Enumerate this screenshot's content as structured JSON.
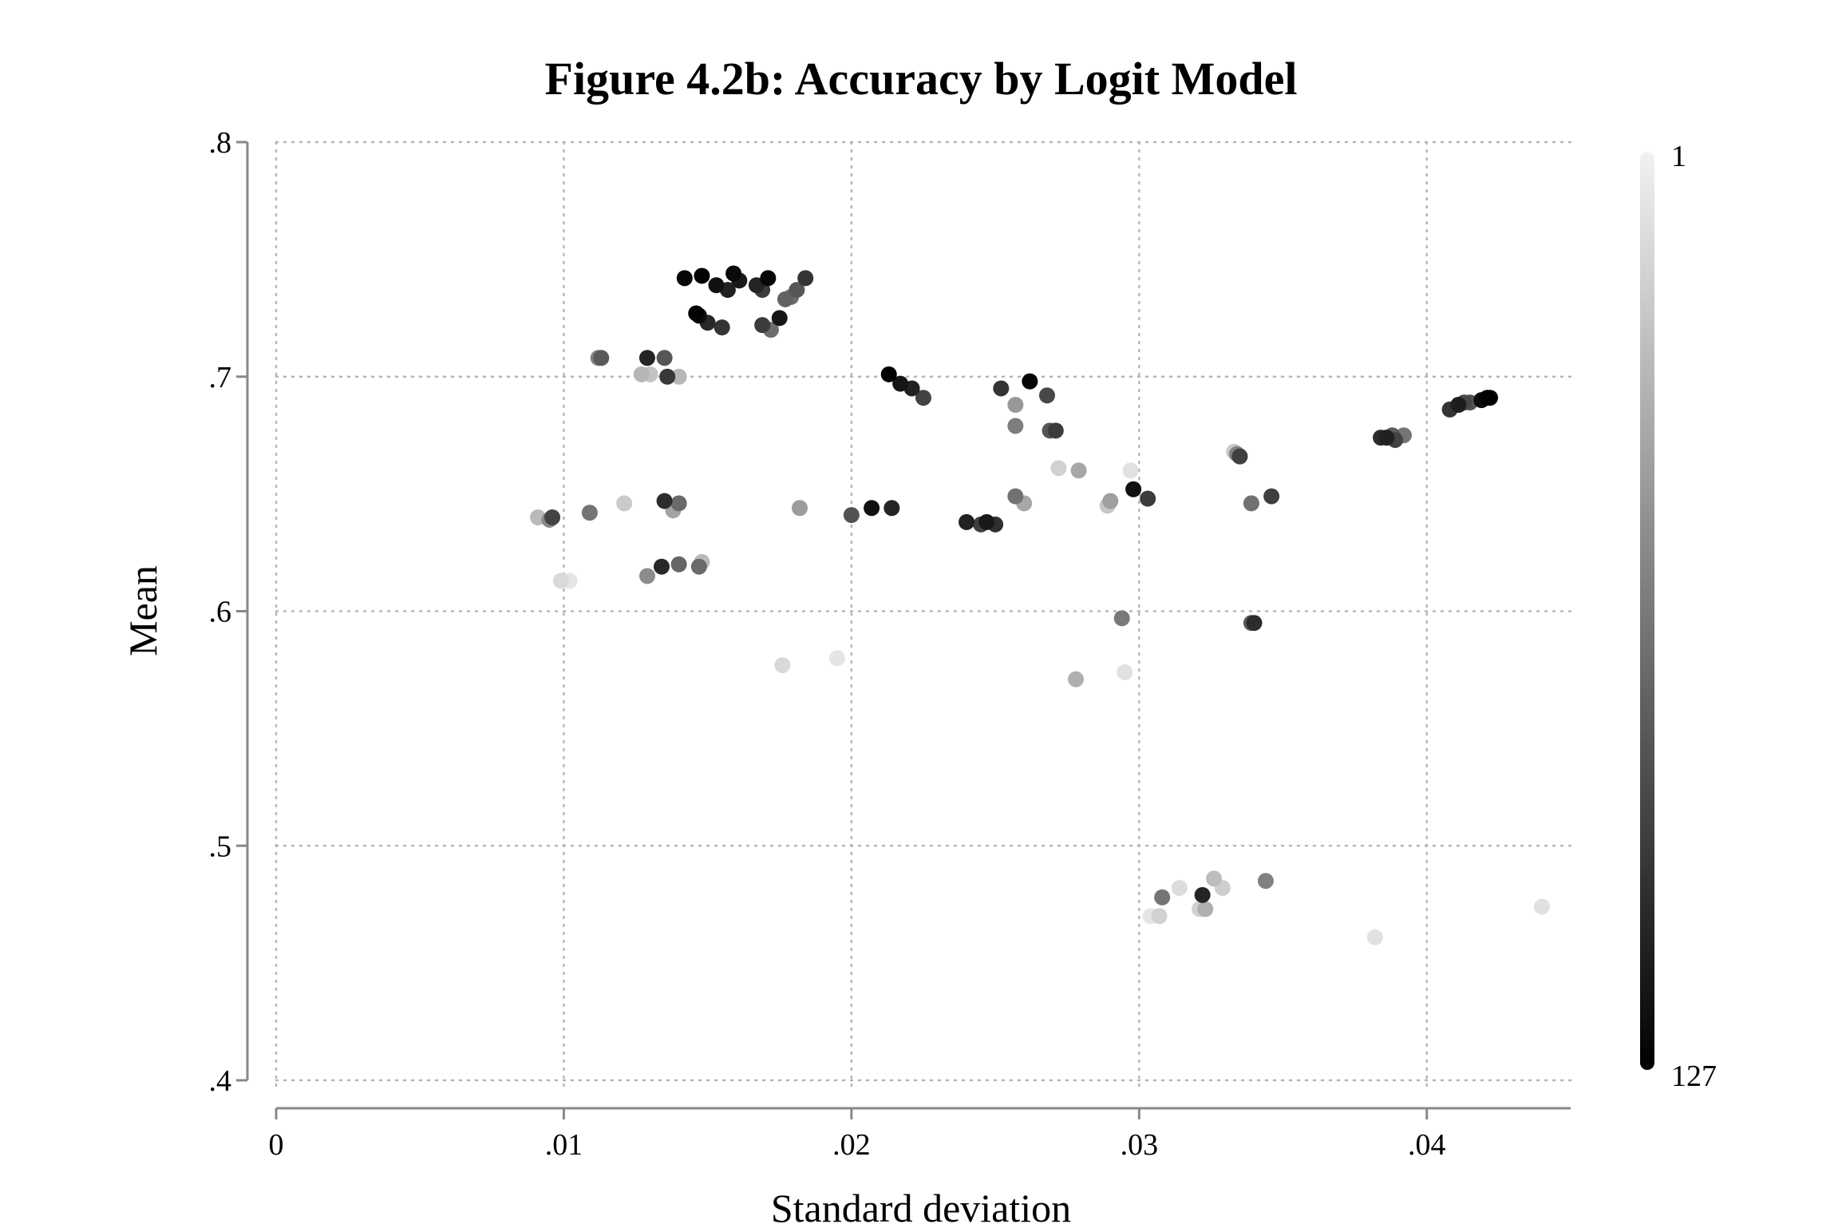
{
  "chart_data": {
    "type": "scatter",
    "title": "Figure 4.2b: Accuracy by Logit Model",
    "xlabel": "Standard deviation",
    "ylabel": "Mean",
    "xlim": [
      0,
      0.045
    ],
    "ylim": [
      0.4,
      0.8
    ],
    "xticks": [
      0,
      0.01,
      0.02,
      0.03,
      0.04
    ],
    "xtick_labels": [
      "0",
      ".01",
      ".02",
      ".03",
      ".04"
    ],
    "yticks": [
      0.4,
      0.5,
      0.6,
      0.7,
      0.8
    ],
    "ytick_labels": [
      ".4",
      ".5",
      ".6",
      ".7",
      ".8"
    ],
    "grid": true,
    "colorbar": {
      "min_label": "1",
      "max_label": "127",
      "min_color": "#f2f2f2",
      "max_color": "#000000",
      "placement": "right"
    },
    "points": [
      {
        "x": 0.0142,
        "y": 0.742,
        "c": 124
      },
      {
        "x": 0.0148,
        "y": 0.743,
        "c": 126
      },
      {
        "x": 0.0153,
        "y": 0.739,
        "c": 118
      },
      {
        "x": 0.0157,
        "y": 0.737,
        "c": 110
      },
      {
        "x": 0.0159,
        "y": 0.744,
        "c": 122
      },
      {
        "x": 0.0161,
        "y": 0.741,
        "c": 114
      },
      {
        "x": 0.0167,
        "y": 0.739,
        "c": 108
      },
      {
        "x": 0.0169,
        "y": 0.737,
        "c": 96
      },
      {
        "x": 0.0171,
        "y": 0.742,
        "c": 124
      },
      {
        "x": 0.0177,
        "y": 0.733,
        "c": 76
      },
      {
        "x": 0.0179,
        "y": 0.734,
        "c": 70
      },
      {
        "x": 0.0181,
        "y": 0.737,
        "c": 82
      },
      {
        "x": 0.0184,
        "y": 0.742,
        "c": 100
      },
      {
        "x": 0.0146,
        "y": 0.727,
        "c": 126
      },
      {
        "x": 0.0147,
        "y": 0.726,
        "c": 120
      },
      {
        "x": 0.015,
        "y": 0.723,
        "c": 106
      },
      {
        "x": 0.0155,
        "y": 0.721,
        "c": 100
      },
      {
        "x": 0.0169,
        "y": 0.722,
        "c": 96
      },
      {
        "x": 0.0172,
        "y": 0.72,
        "c": 70
      },
      {
        "x": 0.0175,
        "y": 0.725,
        "c": 116
      },
      {
        "x": 0.0112,
        "y": 0.708,
        "c": 60
      },
      {
        "x": 0.0113,
        "y": 0.708,
        "c": 80
      },
      {
        "x": 0.0129,
        "y": 0.708,
        "c": 108
      },
      {
        "x": 0.0135,
        "y": 0.708,
        "c": 82
      },
      {
        "x": 0.0127,
        "y": 0.701,
        "c": 32
      },
      {
        "x": 0.013,
        "y": 0.701,
        "c": 25
      },
      {
        "x": 0.0136,
        "y": 0.7,
        "c": 98
      },
      {
        "x": 0.014,
        "y": 0.7,
        "c": 32
      },
      {
        "x": 0.0213,
        "y": 0.701,
        "c": 126
      },
      {
        "x": 0.0217,
        "y": 0.697,
        "c": 116
      },
      {
        "x": 0.0221,
        "y": 0.695,
        "c": 110
      },
      {
        "x": 0.0225,
        "y": 0.691,
        "c": 92
      },
      {
        "x": 0.0252,
        "y": 0.695,
        "c": 100
      },
      {
        "x": 0.0262,
        "y": 0.698,
        "c": 124
      },
      {
        "x": 0.0268,
        "y": 0.692,
        "c": 90
      },
      {
        "x": 0.0257,
        "y": 0.688,
        "c": 48
      },
      {
        "x": 0.0257,
        "y": 0.679,
        "c": 62
      },
      {
        "x": 0.0269,
        "y": 0.677,
        "c": 82
      },
      {
        "x": 0.0271,
        "y": 0.677,
        "c": 96
      },
      {
        "x": 0.0272,
        "y": 0.661,
        "c": 18
      },
      {
        "x": 0.0279,
        "y": 0.66,
        "c": 40
      },
      {
        "x": 0.0297,
        "y": 0.66,
        "c": 10
      },
      {
        "x": 0.0333,
        "y": 0.668,
        "c": 22
      },
      {
        "x": 0.0334,
        "y": 0.667,
        "c": 60
      },
      {
        "x": 0.0335,
        "y": 0.666,
        "c": 94
      },
      {
        "x": 0.0384,
        "y": 0.674,
        "c": 104
      },
      {
        "x": 0.0386,
        "y": 0.674,
        "c": 110
      },
      {
        "x": 0.0388,
        "y": 0.675,
        "c": 78
      },
      {
        "x": 0.0389,
        "y": 0.673,
        "c": 92
      },
      {
        "x": 0.0392,
        "y": 0.675,
        "c": 66
      },
      {
        "x": 0.0408,
        "y": 0.686,
        "c": 100
      },
      {
        "x": 0.0411,
        "y": 0.688,
        "c": 112
      },
      {
        "x": 0.0413,
        "y": 0.689,
        "c": 90
      },
      {
        "x": 0.0415,
        "y": 0.689,
        "c": 84
      },
      {
        "x": 0.0419,
        "y": 0.69,
        "c": 120
      },
      {
        "x": 0.0421,
        "y": 0.691,
        "c": 126
      },
      {
        "x": 0.0422,
        "y": 0.691,
        "c": 124
      },
      {
        "x": 0.0091,
        "y": 0.64,
        "c": 30
      },
      {
        "x": 0.0095,
        "y": 0.639,
        "c": 56
      },
      {
        "x": 0.0096,
        "y": 0.64,
        "c": 92
      },
      {
        "x": 0.0109,
        "y": 0.642,
        "c": 66
      },
      {
        "x": 0.0121,
        "y": 0.646,
        "c": 22
      },
      {
        "x": 0.0135,
        "y": 0.647,
        "c": 104
      },
      {
        "x": 0.0138,
        "y": 0.643,
        "c": 42
      },
      {
        "x": 0.014,
        "y": 0.646,
        "c": 72
      },
      {
        "x": 0.0182,
        "y": 0.644,
        "c": 46
      },
      {
        "x": 0.02,
        "y": 0.641,
        "c": 84
      },
      {
        "x": 0.0207,
        "y": 0.644,
        "c": 118
      },
      {
        "x": 0.0214,
        "y": 0.644,
        "c": 108
      },
      {
        "x": 0.024,
        "y": 0.638,
        "c": 110
      },
      {
        "x": 0.0245,
        "y": 0.637,
        "c": 94
      },
      {
        "x": 0.0247,
        "y": 0.638,
        "c": 114
      },
      {
        "x": 0.025,
        "y": 0.637,
        "c": 102
      },
      {
        "x": 0.0257,
        "y": 0.649,
        "c": 68
      },
      {
        "x": 0.026,
        "y": 0.646,
        "c": 40
      },
      {
        "x": 0.0289,
        "y": 0.645,
        "c": 24
      },
      {
        "x": 0.029,
        "y": 0.647,
        "c": 44
      },
      {
        "x": 0.0298,
        "y": 0.652,
        "c": 118
      },
      {
        "x": 0.0303,
        "y": 0.648,
        "c": 96
      },
      {
        "x": 0.0339,
        "y": 0.646,
        "c": 68
      },
      {
        "x": 0.0346,
        "y": 0.649,
        "c": 94
      },
      {
        "x": 0.0099,
        "y": 0.613,
        "c": 14
      },
      {
        "x": 0.0102,
        "y": 0.613,
        "c": 8
      },
      {
        "x": 0.0129,
        "y": 0.615,
        "c": 54
      },
      {
        "x": 0.0134,
        "y": 0.619,
        "c": 106
      },
      {
        "x": 0.014,
        "y": 0.62,
        "c": 74
      },
      {
        "x": 0.0147,
        "y": 0.619,
        "c": 72
      },
      {
        "x": 0.0148,
        "y": 0.621,
        "c": 30
      },
      {
        "x": 0.0294,
        "y": 0.597,
        "c": 64
      },
      {
        "x": 0.0339,
        "y": 0.595,
        "c": 80
      },
      {
        "x": 0.034,
        "y": 0.595,
        "c": 104
      },
      {
        "x": 0.0176,
        "y": 0.577,
        "c": 14
      },
      {
        "x": 0.0195,
        "y": 0.58,
        "c": 8
      },
      {
        "x": 0.0278,
        "y": 0.571,
        "c": 36
      },
      {
        "x": 0.0295,
        "y": 0.574,
        "c": 10
      },
      {
        "x": 0.0304,
        "y": 0.47,
        "c": 8
      },
      {
        "x": 0.0307,
        "y": 0.47,
        "c": 18
      },
      {
        "x": 0.0308,
        "y": 0.478,
        "c": 66
      },
      {
        "x": 0.0314,
        "y": 0.482,
        "c": 12
      },
      {
        "x": 0.0321,
        "y": 0.473,
        "c": 18
      },
      {
        "x": 0.0322,
        "y": 0.479,
        "c": 108
      },
      {
        "x": 0.0323,
        "y": 0.473,
        "c": 36
      },
      {
        "x": 0.0326,
        "y": 0.486,
        "c": 28
      },
      {
        "x": 0.0329,
        "y": 0.482,
        "c": 20
      },
      {
        "x": 0.0344,
        "y": 0.485,
        "c": 60
      },
      {
        "x": 0.0382,
        "y": 0.461,
        "c": 10
      },
      {
        "x": 0.044,
        "y": 0.474,
        "c": 10
      }
    ]
  }
}
